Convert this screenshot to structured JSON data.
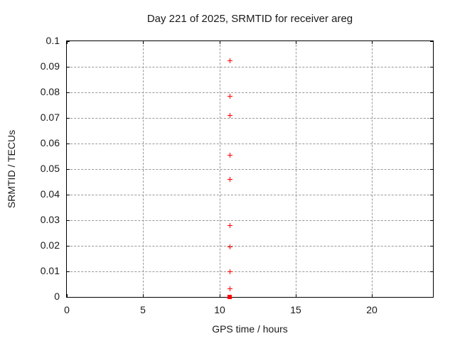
{
  "window": {
    "background_color": "#ffffff",
    "border_color": "#000000"
  },
  "chart_data": {
    "type": "scatter",
    "title": "Day 221 of 2025, SRMTID for receiver areg",
    "xlabel": "GPS time / hours",
    "ylabel": "SRMTID / TECUs",
    "xlim": [
      0,
      24
    ],
    "ylim": [
      0,
      0.1
    ],
    "x_ticks": [
      0,
      5,
      10,
      15,
      20
    ],
    "x_tick_labels": [
      "0",
      "5",
      "10",
      "15",
      "20"
    ],
    "y_ticks": [
      0,
      0.01,
      0.02,
      0.03,
      0.04,
      0.05,
      0.06,
      0.07,
      0.08,
      0.09,
      0.1
    ],
    "y_tick_labels": [
      "0",
      "0.01",
      "0.02",
      "0.03",
      "0.04",
      "0.05",
      "0.06",
      "0.07",
      "0.08",
      "0.09",
      "0.1"
    ],
    "grid": "dashed",
    "grid_color": "#999999",
    "legend": "none",
    "series": [
      {
        "name": "srmtid-plus-markers",
        "marker": "plus",
        "color": "#ff0000",
        "points": [
          {
            "x": 10.7,
            "y": 0.0925
          },
          {
            "x": 10.7,
            "y": 0.0785
          },
          {
            "x": 10.7,
            "y": 0.071
          },
          {
            "x": 10.7,
            "y": 0.0555
          },
          {
            "x": 10.7,
            "y": 0.046
          },
          {
            "x": 10.7,
            "y": 0.0278
          },
          {
            "x": 10.7,
            "y": 0.0195
          },
          {
            "x": 10.7,
            "y": 0.01
          },
          {
            "x": 10.7,
            "y": 0.0033
          }
        ]
      },
      {
        "name": "srmtid-square-markers",
        "marker": "filled-square",
        "color": "#ff0000",
        "points": [
          {
            "x": 10.65,
            "y": 0.0
          }
        ]
      }
    ]
  }
}
